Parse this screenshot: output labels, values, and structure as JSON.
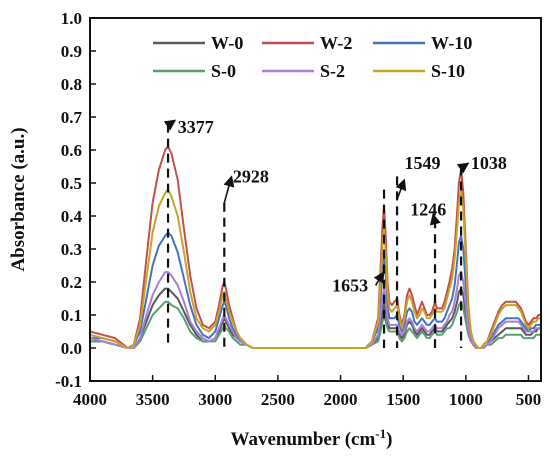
{
  "chart_data": {
    "type": "line",
    "title": "",
    "xlabel": "Wavenumber (cm",
    "xlabel_sup": "-1",
    "xlabel_tail": ")",
    "ylabel": "Absorbance (a.u.)",
    "xlim": [
      4000,
      400
    ],
    "ylim": [
      -0.1,
      1.0
    ],
    "x_reversed": true,
    "x_ticks": [
      4000,
      3500,
      3000,
      2500,
      2000,
      1500,
      1000,
      500
    ],
    "x_tick_labels": [
      "4000",
      "3500",
      "3000",
      "2500",
      "2000",
      "1500",
      "1000",
      "500"
    ],
    "y_ticks": [
      -0.1,
      0.0,
      0.1,
      0.2,
      0.3,
      0.4,
      0.5,
      0.6,
      0.7,
      0.8,
      0.9,
      1.0
    ],
    "y_tick_labels": [
      "-0.1",
      "0.0",
      "0.1",
      "0.2",
      "0.3",
      "0.4",
      "0.5",
      "0.6",
      "0.7",
      "0.8",
      "0.9",
      "1.0"
    ],
    "grid": false,
    "legend": {
      "placement": "top-center",
      "columns": 3
    },
    "x": [
      4000,
      3900,
      3800,
      3700,
      3650,
      3600,
      3550,
      3500,
      3450,
      3400,
      3377,
      3350,
      3300,
      3250,
      3200,
      3150,
      3100,
      3050,
      3000,
      2970,
      2940,
      2928,
      2915,
      2890,
      2860,
      2830,
      2800,
      2750,
      2700,
      2600,
      2500,
      2400,
      2300,
      2200,
      2100,
      2000,
      1900,
      1800,
      1750,
      1700,
      1680,
      1665,
      1653,
      1640,
      1625,
      1610,
      1590,
      1570,
      1549,
      1530,
      1510,
      1490,
      1470,
      1450,
      1430,
      1410,
      1390,
      1370,
      1350,
      1330,
      1310,
      1290,
      1270,
      1246,
      1230,
      1210,
      1190,
      1170,
      1150,
      1130,
      1110,
      1090,
      1070,
      1055,
      1038,
      1020,
      1000,
      980,
      960,
      940,
      920,
      900,
      880,
      860,
      830,
      800,
      770,
      740,
      710,
      680,
      650,
      620,
      600,
      580,
      560,
      540,
      520,
      500,
      480,
      460,
      440,
      420,
      400
    ],
    "series": [
      {
        "name": "W-0",
        "color": "#595959",
        "peak": 0.18,
        "values": [
          0.02,
          0.02,
          0.01,
          0.0,
          0.0,
          0.03,
          0.08,
          0.13,
          0.16,
          0.18,
          0.18,
          0.17,
          0.15,
          0.11,
          0.07,
          0.04,
          0.02,
          0.02,
          0.03,
          0.05,
          0.08,
          0.09,
          0.08,
          0.06,
          0.04,
          0.03,
          0.02,
          0.01,
          0.0,
          0.0,
          0.0,
          0.0,
          0.0,
          0.0,
          0.0,
          0.0,
          0.0,
          0.0,
          0.01,
          0.03,
          0.07,
          0.11,
          0.14,
          0.11,
          0.08,
          0.06,
          0.06,
          0.06,
          0.06,
          0.04,
          0.03,
          0.04,
          0.07,
          0.08,
          0.07,
          0.05,
          0.04,
          0.05,
          0.06,
          0.05,
          0.04,
          0.04,
          0.05,
          0.06,
          0.05,
          0.05,
          0.05,
          0.06,
          0.07,
          0.08,
          0.09,
          0.11,
          0.14,
          0.17,
          0.18,
          0.16,
          0.1,
          0.05,
          0.02,
          0.01,
          0.0,
          0.0,
          0.0,
          0.0,
          0.01,
          0.02,
          0.03,
          0.04,
          0.05,
          0.06,
          0.06,
          0.06,
          0.06,
          0.06,
          0.06,
          0.05,
          0.04,
          0.04,
          0.04,
          0.05,
          0.05,
          0.06,
          0.06
        ]
      },
      {
        "name": "W-2",
        "color": "#c0504d",
        "peak": 0.61,
        "values": [
          0.05,
          0.04,
          0.03,
          0.0,
          0.01,
          0.09,
          0.27,
          0.44,
          0.54,
          0.6,
          0.61,
          0.59,
          0.51,
          0.36,
          0.22,
          0.12,
          0.07,
          0.06,
          0.08,
          0.13,
          0.19,
          0.2,
          0.18,
          0.13,
          0.09,
          0.05,
          0.03,
          0.01,
          0.0,
          0.0,
          0.0,
          0.0,
          0.0,
          0.0,
          0.0,
          0.0,
          0.0,
          0.0,
          0.02,
          0.09,
          0.24,
          0.37,
          0.43,
          0.34,
          0.2,
          0.14,
          0.13,
          0.14,
          0.15,
          0.1,
          0.07,
          0.1,
          0.16,
          0.18,
          0.16,
          0.13,
          0.1,
          0.12,
          0.14,
          0.12,
          0.1,
          0.1,
          0.11,
          0.14,
          0.12,
          0.12,
          0.12,
          0.14,
          0.17,
          0.2,
          0.24,
          0.3,
          0.41,
          0.5,
          0.54,
          0.47,
          0.3,
          0.13,
          0.05,
          0.02,
          0.01,
          0.0,
          0.0,
          0.01,
          0.02,
          0.05,
          0.08,
          0.11,
          0.13,
          0.14,
          0.14,
          0.14,
          0.14,
          0.13,
          0.12,
          0.1,
          0.08,
          0.07,
          0.08,
          0.09,
          0.09,
          0.1,
          0.1
        ]
      },
      {
        "name": "W-10",
        "color": "#4472c4",
        "peak": 0.35,
        "values": [
          0.03,
          0.03,
          0.02,
          0.0,
          0.01,
          0.05,
          0.15,
          0.25,
          0.31,
          0.34,
          0.35,
          0.34,
          0.29,
          0.21,
          0.13,
          0.07,
          0.04,
          0.03,
          0.05,
          0.09,
          0.13,
          0.14,
          0.13,
          0.09,
          0.06,
          0.04,
          0.02,
          0.01,
          0.0,
          0.0,
          0.0,
          0.0,
          0.0,
          0.0,
          0.0,
          0.0,
          0.0,
          0.0,
          0.02,
          0.06,
          0.15,
          0.24,
          0.28,
          0.22,
          0.13,
          0.09,
          0.09,
          0.09,
          0.1,
          0.07,
          0.05,
          0.07,
          0.11,
          0.12,
          0.11,
          0.08,
          0.07,
          0.08,
          0.09,
          0.08,
          0.07,
          0.07,
          0.08,
          0.09,
          0.08,
          0.08,
          0.08,
          0.09,
          0.11,
          0.13,
          0.15,
          0.19,
          0.26,
          0.32,
          0.34,
          0.3,
          0.19,
          0.08,
          0.03,
          0.01,
          0.0,
          0.0,
          0.0,
          0.0,
          0.01,
          0.03,
          0.05,
          0.07,
          0.08,
          0.09,
          0.09,
          0.09,
          0.09,
          0.09,
          0.08,
          0.07,
          0.06,
          0.05,
          0.06,
          0.06,
          0.07,
          0.07,
          0.07
        ]
      },
      {
        "name": "S-0",
        "color": "#5a9e6f",
        "peak": 0.14,
        "values": [
          0.02,
          0.02,
          0.01,
          0.0,
          0.0,
          0.02,
          0.06,
          0.1,
          0.12,
          0.14,
          0.14,
          0.13,
          0.12,
          0.09,
          0.05,
          0.03,
          0.02,
          0.02,
          0.02,
          0.04,
          0.06,
          0.07,
          0.06,
          0.05,
          0.03,
          0.02,
          0.01,
          0.01,
          0.0,
          0.0,
          0.0,
          0.0,
          0.0,
          0.0,
          0.0,
          0.0,
          0.0,
          0.0,
          0.01,
          0.02,
          0.05,
          0.08,
          0.1,
          0.08,
          0.06,
          0.05,
          0.05,
          0.05,
          0.05,
          0.03,
          0.02,
          0.03,
          0.05,
          0.06,
          0.05,
          0.04,
          0.03,
          0.04,
          0.05,
          0.04,
          0.03,
          0.03,
          0.04,
          0.05,
          0.04,
          0.04,
          0.04,
          0.05,
          0.06,
          0.06,
          0.07,
          0.09,
          0.11,
          0.13,
          0.14,
          0.12,
          0.08,
          0.04,
          0.02,
          0.01,
          0.0,
          0.0,
          0.0,
          0.0,
          0.01,
          0.01,
          0.02,
          0.03,
          0.03,
          0.04,
          0.04,
          0.04,
          0.04,
          0.04,
          0.04,
          0.03,
          0.03,
          0.03,
          0.03,
          0.03,
          0.04,
          0.04,
          0.04
        ]
      },
      {
        "name": "S-2",
        "color": "#a77fd6",
        "peak": 0.23,
        "values": [
          0.03,
          0.02,
          0.01,
          0.0,
          0.0,
          0.03,
          0.1,
          0.16,
          0.2,
          0.23,
          0.23,
          0.22,
          0.19,
          0.14,
          0.08,
          0.05,
          0.03,
          0.02,
          0.03,
          0.06,
          0.09,
          0.1,
          0.09,
          0.07,
          0.05,
          0.03,
          0.02,
          0.01,
          0.0,
          0.0,
          0.0,
          0.0,
          0.0,
          0.0,
          0.0,
          0.0,
          0.0,
          0.0,
          0.01,
          0.04,
          0.1,
          0.15,
          0.18,
          0.14,
          0.09,
          0.07,
          0.07,
          0.07,
          0.07,
          0.05,
          0.04,
          0.05,
          0.08,
          0.09,
          0.08,
          0.06,
          0.05,
          0.06,
          0.07,
          0.06,
          0.05,
          0.05,
          0.06,
          0.07,
          0.06,
          0.06,
          0.06,
          0.07,
          0.08,
          0.1,
          0.11,
          0.14,
          0.18,
          0.22,
          0.23,
          0.2,
          0.13,
          0.06,
          0.02,
          0.01,
          0.0,
          0.0,
          0.0,
          0.0,
          0.01,
          0.02,
          0.04,
          0.06,
          0.07,
          0.08,
          0.08,
          0.08,
          0.08,
          0.08,
          0.07,
          0.06,
          0.05,
          0.05,
          0.05,
          0.05,
          0.06,
          0.06,
          0.06
        ]
      },
      {
        "name": "S-10",
        "color": "#c9a227",
        "peak": 0.48,
        "values": [
          0.04,
          0.03,
          0.02,
          0.0,
          0.01,
          0.07,
          0.21,
          0.35,
          0.43,
          0.47,
          0.48,
          0.46,
          0.4,
          0.29,
          0.17,
          0.09,
          0.06,
          0.05,
          0.07,
          0.11,
          0.16,
          0.17,
          0.15,
          0.11,
          0.08,
          0.05,
          0.03,
          0.01,
          0.0,
          0.0,
          0.0,
          0.0,
          0.0,
          0.0,
          0.0,
          0.0,
          0.0,
          0.0,
          0.02,
          0.08,
          0.2,
          0.31,
          0.36,
          0.29,
          0.17,
          0.12,
          0.11,
          0.12,
          0.13,
          0.09,
          0.06,
          0.09,
          0.14,
          0.16,
          0.14,
          0.11,
          0.09,
          0.1,
          0.12,
          0.11,
          0.09,
          0.09,
          0.1,
          0.12,
          0.11,
          0.11,
          0.11,
          0.12,
          0.15,
          0.18,
          0.21,
          0.27,
          0.36,
          0.44,
          0.48,
          0.42,
          0.27,
          0.12,
          0.05,
          0.02,
          0.01,
          0.0,
          0.0,
          0.01,
          0.02,
          0.04,
          0.07,
          0.1,
          0.12,
          0.13,
          0.13,
          0.13,
          0.13,
          0.12,
          0.11,
          0.09,
          0.07,
          0.06,
          0.07,
          0.08,
          0.08,
          0.09,
          0.09
        ]
      }
    ],
    "annotations": [
      {
        "label": "3377",
        "x": 3377
      },
      {
        "label": "2928",
        "x": 2928
      },
      {
        "label": "1653",
        "x": 1653
      },
      {
        "label": "1549",
        "x": 1549
      },
      {
        "label": "1246",
        "x": 1246
      },
      {
        "label": "1038",
        "x": 1038
      }
    ]
  }
}
